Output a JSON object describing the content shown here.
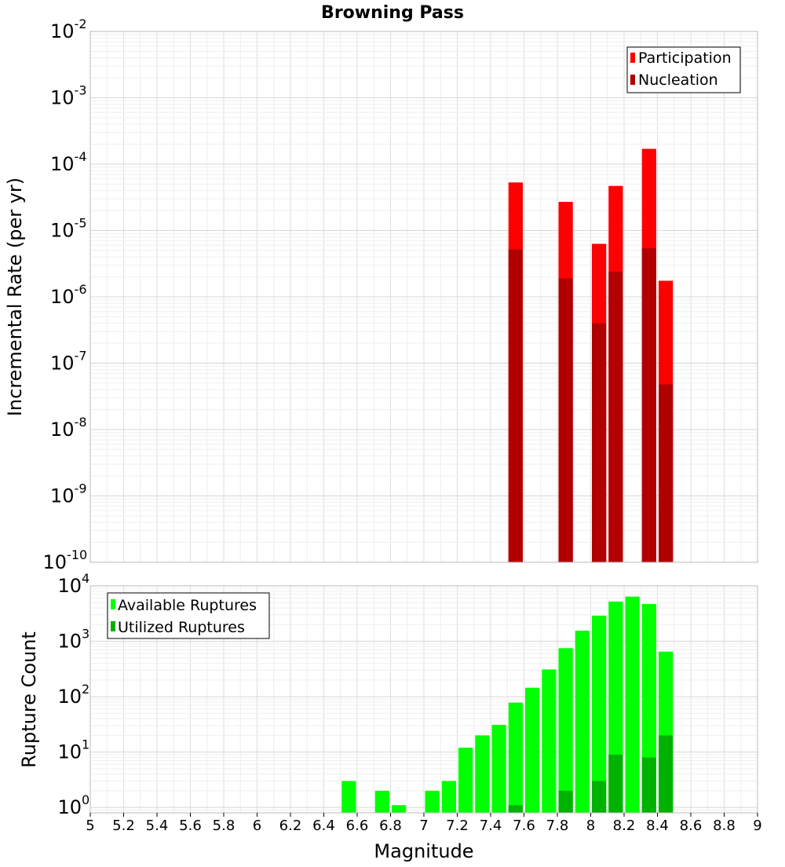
{
  "chart_data": [
    {
      "type": "bar",
      "title": "Browning Pass",
      "xlabel": "Magnitude",
      "ylabel": "Incremental Rate (per yr)",
      "yscale": "log",
      "ylim": [
        1e-10,
        0.01
      ],
      "xlim": [
        5,
        9
      ],
      "bin_width": 0.1,
      "ytick_exponents": [
        "-10",
        "-9",
        "-8",
        "-7",
        "-6",
        "-5",
        "-4",
        "-3",
        "-2"
      ],
      "ytick_base": "10",
      "legend_position": "top-right",
      "series": [
        {
          "name": "Participation",
          "color": "#ff0000",
          "points": [
            {
              "x": 7.55,
              "y": 5.3e-05
            },
            {
              "x": 7.85,
              "y": 2.7e-05
            },
            {
              "x": 8.05,
              "y": 6.3e-06
            },
            {
              "x": 8.15,
              "y": 4.7e-05
            },
            {
              "x": 8.35,
              "y": 0.00017
            },
            {
              "x": 8.45,
              "y": 1.75e-06
            }
          ]
        },
        {
          "name": "Nucleation",
          "color": "#b20000",
          "points": [
            {
              "x": 7.55,
              "y": 5.2e-06
            },
            {
              "x": 7.85,
              "y": 1.9e-06
            },
            {
              "x": 8.05,
              "y": 4e-07
            },
            {
              "x": 8.15,
              "y": 2.4e-06
            },
            {
              "x": 8.35,
              "y": 5.4e-06
            },
            {
              "x": 8.45,
              "y": 4.8e-08
            }
          ]
        }
      ]
    },
    {
      "type": "bar",
      "title": "",
      "xlabel": "Magnitude",
      "ylabel": "Rupture Count",
      "yscale": "log",
      "ylim": [
        0.8,
        10000
      ],
      "xlim": [
        5,
        9
      ],
      "bin_width": 0.1,
      "ytick_values": [
        1,
        10,
        100,
        1000,
        10000
      ],
      "ytick_exponents": [
        "0",
        "1",
        "2",
        "3",
        "4"
      ],
      "ytick_base": "10",
      "xticks": [
        5,
        5.2,
        5.4,
        5.6,
        5.8,
        6,
        6.2,
        6.4,
        6.6,
        6.8,
        7,
        7.2,
        7.4,
        7.6,
        7.8,
        8,
        8.2,
        8.4,
        8.6,
        8.8,
        9
      ],
      "xtick_labels": [
        "5",
        "5.2",
        "5.4",
        "5.6",
        "5.8",
        "6",
        "6.2",
        "6.4",
        "6.6",
        "6.8",
        "7",
        "7.2",
        "7.4",
        "7.6",
        "7.8",
        "8",
        "8.2",
        "8.4",
        "8.6",
        "8.8",
        "9"
      ],
      "legend_position": "top-left",
      "series": [
        {
          "name": "Available Ruptures",
          "color": "#00ff00",
          "points": [
            {
              "x": 6.55,
              "y": 3
            },
            {
              "x": 6.75,
              "y": 2
            },
            {
              "x": 6.85,
              "y": 1.1
            },
            {
              "x": 7.05,
              "y": 2
            },
            {
              "x": 7.15,
              "y": 3
            },
            {
              "x": 7.25,
              "y": 12
            },
            {
              "x": 7.35,
              "y": 20
            },
            {
              "x": 7.45,
              "y": 31
            },
            {
              "x": 7.55,
              "y": 78
            },
            {
              "x": 7.65,
              "y": 145
            },
            {
              "x": 7.75,
              "y": 310
            },
            {
              "x": 7.85,
              "y": 750
            },
            {
              "x": 7.95,
              "y": 1550
            },
            {
              "x": 8.05,
              "y": 2900
            },
            {
              "x": 8.15,
              "y": 5200
            },
            {
              "x": 8.25,
              "y": 6400
            },
            {
              "x": 8.35,
              "y": 4700
            },
            {
              "x": 8.45,
              "y": 650
            }
          ]
        },
        {
          "name": "Utilized Ruptures",
          "color": "#00b200",
          "points": [
            {
              "x": 7.55,
              "y": 1.1
            },
            {
              "x": 7.85,
              "y": 2
            },
            {
              "x": 8.05,
              "y": 3
            },
            {
              "x": 8.15,
              "y": 9
            },
            {
              "x": 8.35,
              "y": 8
            },
            {
              "x": 8.45,
              "y": 20
            }
          ]
        }
      ]
    }
  ]
}
